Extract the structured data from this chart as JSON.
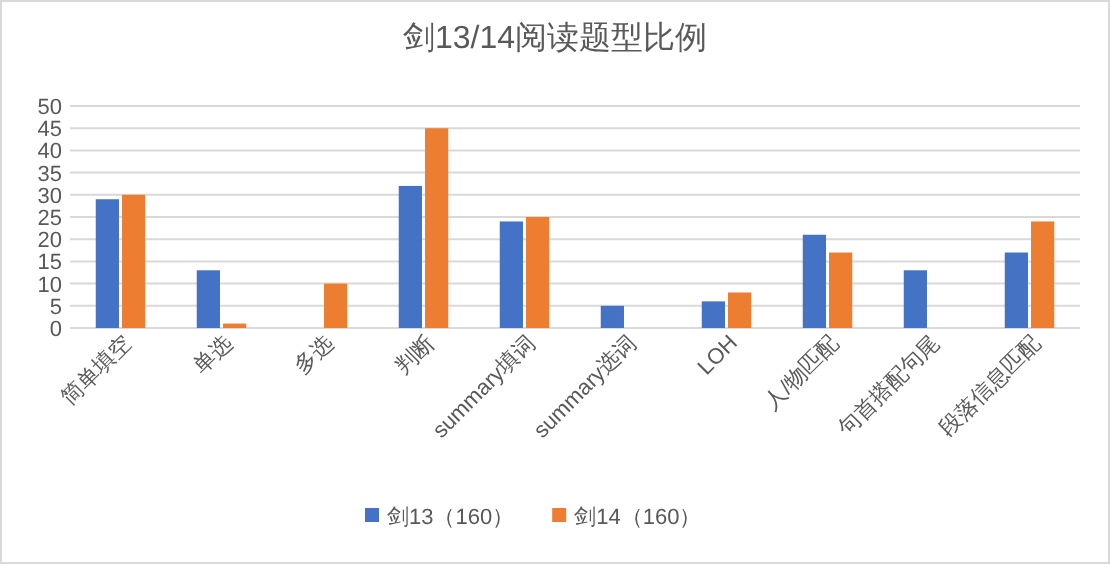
{
  "chart_data": {
    "type": "bar",
    "title": "剑13/14阅读题型比例",
    "categories": [
      "简单填空",
      "单选",
      "多选",
      "判断",
      "summary填词",
      "summary选词",
      "LOH",
      "人/物匹配",
      "句首搭配句尾",
      "段落信息匹配"
    ],
    "series": [
      {
        "name": "剑13（160）",
        "color": "#4472c4",
        "values": [
          29,
          13,
          0,
          32,
          24,
          5,
          6,
          21,
          13,
          17
        ]
      },
      {
        "name": "剑14（160）",
        "color": "#ed7d31",
        "values": [
          30,
          1,
          10,
          45,
          25,
          0,
          8,
          17,
          0,
          24
        ]
      }
    ],
    "ylim": [
      0,
      50
    ],
    "yticks": [
      0,
      5,
      10,
      15,
      20,
      25,
      30,
      35,
      40,
      45,
      50
    ],
    "grid": "y",
    "legend": "bottom"
  }
}
